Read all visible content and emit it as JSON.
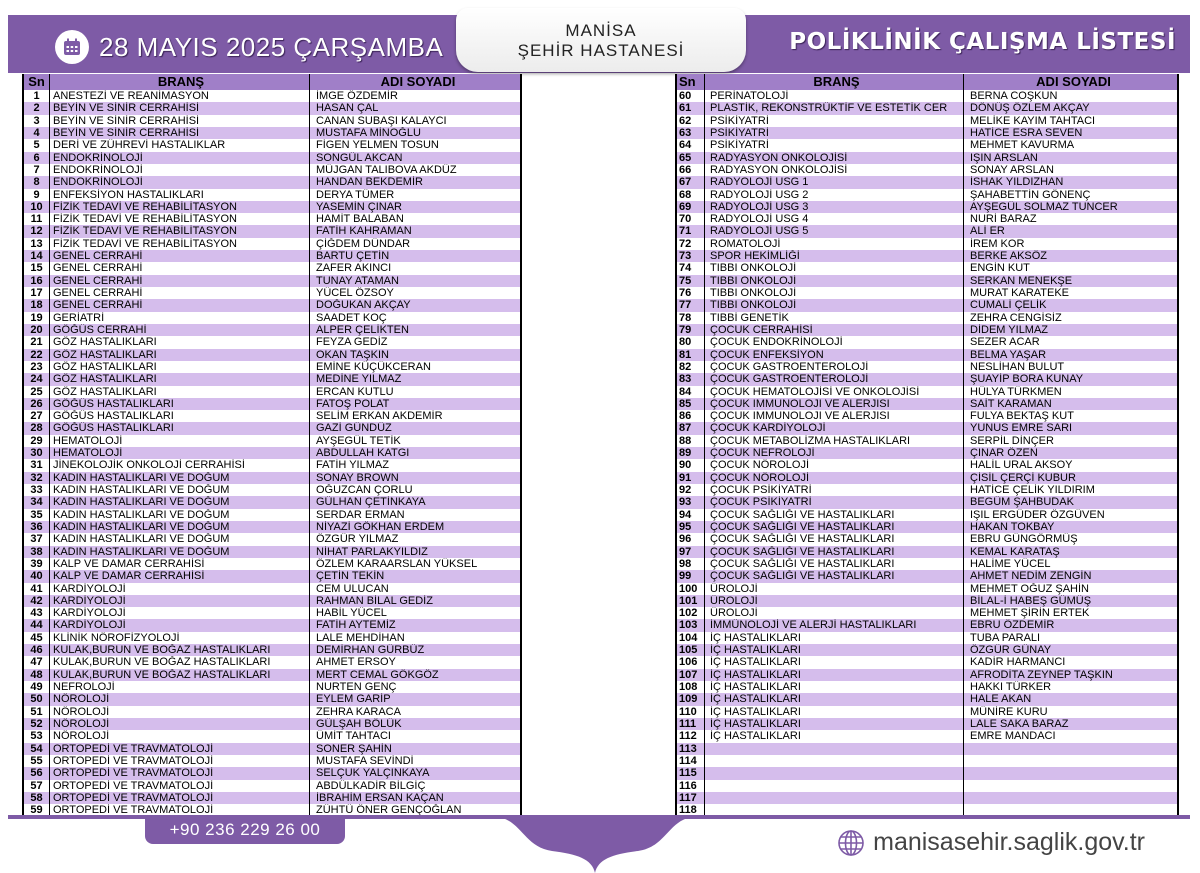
{
  "header": {
    "date": "28 MAYIS 2025 ÇARŞAMBA",
    "hospital_line1": "MANİSA",
    "hospital_line2": "ŞEHİR HASTANESİ",
    "title": "POLİKLİNİK ÇALIŞMA LİSTESİ",
    "calendar_icon": "calendar-icon"
  },
  "columns": {
    "sn": "Sn",
    "brans": "BRANŞ",
    "name": "ADI SOYADI"
  },
  "colors": {
    "accent": "#7e5ba6",
    "row_alt": "#d5bdec",
    "header_row": "#a07fc8"
  },
  "left_rows": [
    [
      "1",
      "ANESTEZİ VE REANİMASYON",
      "İMGE ÖZDEMİR"
    ],
    [
      "2",
      "BEYİN VE SİNİR CERRAHİSİ",
      "HASAN ÇAL"
    ],
    [
      "3",
      "BEYİN VE SİNİR CERRAHİSİ",
      "CANAN SUBAŞI KALAYCI"
    ],
    [
      "4",
      "BEYİN VE SİNİR CERRAHİSİ",
      "MUSTAFA MİNOĞLU"
    ],
    [
      "5",
      "DERİ VE ZÜHREVİ HASTALIKLAR",
      "FİGEN YELMEN TOSUN"
    ],
    [
      "6",
      "ENDOKRİNOLOJİ",
      "SONGÜL AKCAN"
    ],
    [
      "7",
      "ENDOKRİNOLOJİ",
      "MÜJGAN TALIBOVA AKDÜZ"
    ],
    [
      "8",
      "ENDOKRİNOLOJİ",
      "HANDAN BEKDEMİR"
    ],
    [
      "9",
      "ENFEKSİYON HASTALIKLARI",
      "DERYA TÜMER"
    ],
    [
      "10",
      "FİZİK TEDAVİ VE REHABİLİTASYON",
      "YASEMİN ÇINAR"
    ],
    [
      "11",
      "FİZİK TEDAVİ VE REHABİLİTASYON",
      "HAMİT BALABAN"
    ],
    [
      "12",
      "FİZİK TEDAVİ VE REHABİLİTASYON",
      "FATİH KAHRAMAN"
    ],
    [
      "13",
      "FİZİK TEDAVİ VE REHABİLİTASYON",
      "ÇİĞDEM DÜNDAR"
    ],
    [
      "14",
      "GENEL CERRAHİ",
      "BARTU ÇETİN"
    ],
    [
      "15",
      "GENEL CERRAHİ",
      "ZAFER AKINCI"
    ],
    [
      "16",
      "GENEL CERRAHİ",
      "TUNAY ATAMAN"
    ],
    [
      "17",
      "GENEL CERRAHİ",
      "YÜCEL ÖZSOY"
    ],
    [
      "18",
      "GENEL CERRAHİ",
      "DOĞUKAN AKÇAY"
    ],
    [
      "19",
      "GERİATRİ",
      "SAADET KOÇ"
    ],
    [
      "20",
      "GÖĞÜS CERRAHİ",
      "ALPER ÇELİKTEN"
    ],
    [
      "21",
      "GÖZ HASTALIKLARI",
      "FEYZA GEDİZ"
    ],
    [
      "22",
      "GÖZ HASTALIKLARI",
      "OKAN TAŞKIN"
    ],
    [
      "23",
      "GÖZ HASTALIKLARI",
      "EMİNE KÜÇÜKCERAN"
    ],
    [
      "24",
      "GÖZ HASTALIKLARI",
      "MEDİNE YILMAZ"
    ],
    [
      "25",
      "GÖZ HASTALIKLARI",
      "ERCAN KUTLU"
    ],
    [
      "26",
      "GÖĞÜS HASTALIKLARI",
      "FATOŞ POLAT"
    ],
    [
      "27",
      "GÖĞÜS HASTALIKLARI",
      "SELİM ERKAN AKDEMİR"
    ],
    [
      "28",
      "GÖĞÜS HASTALIKLARI",
      "GAZİ GÜNDÜZ"
    ],
    [
      "29",
      "HEMATOLOJİ",
      "AYŞEGÜL TETİK"
    ],
    [
      "30",
      "HEMATOLOJİ",
      "ABDULLAH KATGI"
    ],
    [
      "31",
      "JİNEKOLOJİK ONKOLOJİ CERRAHİSİ",
      "FATİH YILMAZ"
    ],
    [
      "32",
      "KADIN HASTALIKLARI VE DOĞUM",
      "SONAY BROWN"
    ],
    [
      "33",
      "KADIN HASTALIKLARI VE DOĞUM",
      "OĞUZCAN ÇORLU"
    ],
    [
      "34",
      "KADIN HASTALIKLARI VE DOĞUM",
      "GÜLHAN ÇETİNKAYA"
    ],
    [
      "35",
      "KADIN HASTALIKLARI VE DOĞUM",
      "SERDAR ERMAN"
    ],
    [
      "36",
      "KADIN HASTALIKLARI VE DOĞUM",
      "NİYAZİ GÖKHAN ERDEM"
    ],
    [
      "37",
      "KADIN HASTALIKLARI VE DOĞUM",
      "ÖZGÜR YILMAZ"
    ],
    [
      "38",
      "KADIN HASTALIKLARI VE DOĞUM",
      "NİHAT PARLAKYILDIZ"
    ],
    [
      "39",
      "KALP VE DAMAR CERRAHİSİ",
      "ÖZLEM KARAARSLAN YÜKSEL"
    ],
    [
      "40",
      "KALP VE DAMAR CERRAHİSİ",
      "ÇETİN TEKİN"
    ],
    [
      "41",
      "KARDİYOLOJİ",
      "CEM ULUCAN"
    ],
    [
      "42",
      "KARDİYOLOJİ",
      "RAHMAN BİLAL GEDİZ"
    ],
    [
      "43",
      "KARDİYOLOJİ",
      "HABİL YÜCEL"
    ],
    [
      "44",
      "KARDİYOLOJİ",
      "FATİH AYTEMİZ"
    ],
    [
      "45",
      "KLİNİK NÖROFİZYOLOJİ",
      "LALE MEHDİHAN"
    ],
    [
      "46",
      "KULAK,BURUN VE BOĞAZ HASTALIKLARI",
      "DEMİRHAN GÜRBÜZ"
    ],
    [
      "47",
      "KULAK,BURUN VE BOĞAZ HASTALIKLARI",
      "AHMET ERSOY"
    ],
    [
      "48",
      "KULAK,BURUN VE BOĞAZ HASTALIKLARI",
      "MERT CEMAL GÖKGÖZ"
    ],
    [
      "49",
      "NEFROLOJİ",
      "NURTEN GENÇ"
    ],
    [
      "50",
      "NÖROLOJİ",
      "EYLEM GARİP"
    ],
    [
      "51",
      "NÖROLOJİ",
      "ZEHRA KARACA"
    ],
    [
      "52",
      "NÖROLOJİ",
      "GÜLŞAH BÖLÜK"
    ],
    [
      "53",
      "NÖROLOJİ",
      "ÜMİT TAHTACI"
    ],
    [
      "54",
      "ORTOPEDİ VE TRAVMATOLOJİ",
      "SONER ŞAHİN"
    ],
    [
      "55",
      "ORTOPEDİ VE TRAVMATOLOJİ",
      "MUSTAFA SEVİNDİ"
    ],
    [
      "56",
      "ORTOPEDİ VE TRAVMATOLOJİ",
      "SELÇUK YALÇINKAYA"
    ],
    [
      "57",
      "ORTOPEDİ VE TRAVMATOLOJİ",
      "ABDÜLKADİR BİLGİÇ"
    ],
    [
      "58",
      "ORTOPEDİ VE TRAVMATOLOJİ",
      "İBRAHİM ERSAN KAÇAN"
    ],
    [
      "59",
      "ORTOPEDİ VE TRAVMATOLOJİ",
      "ZÜHTÜ ÖNER GENÇOĞLAN"
    ]
  ],
  "right_rows": [
    [
      "60",
      "PERİNATOLOJİ",
      "BERNA COŞKUN"
    ],
    [
      "61",
      "PLASTİK, REKONSTRÜKTİF VE ESTETİK CER",
      "DÖNÜŞ ÖZLEM AKÇAY"
    ],
    [
      "62",
      "PSİKİYATRİ",
      "MELİKE KAYIM TAHTACI"
    ],
    [
      "63",
      "PSİKİYATRİ",
      "HATİCE ESRA SEVEN"
    ],
    [
      "64",
      "PSİKİYATRİ",
      "MEHMET KAVURMA"
    ],
    [
      "65",
      "RADYASYON ONKOLOJİSİ",
      "IŞIN ARSLAN"
    ],
    [
      "66",
      "RADYASYON ONKOLOJİSİ",
      "SONAY ARSLAN"
    ],
    [
      "67",
      "RADYOLOJİ USG 1",
      "İSHAK YILDIZHAN"
    ],
    [
      "68",
      "RADYOLOJİ USG 2",
      "ŞAHABETTİN  GÖNENÇ"
    ],
    [
      "69",
      "RADYOLOJİ USG 3",
      "AYŞEGÜL SOLMAZ TUNCER"
    ],
    [
      "70",
      "RADYOLOJİ USG 4",
      "NURİ BARAZ"
    ],
    [
      "71",
      "RADYOLOJİ USG 5",
      "ALİ ER"
    ],
    [
      "72",
      "ROMATOLOJİ",
      "İREM KOR"
    ],
    [
      "73",
      "SPOR HEKİMLİĞİ",
      "BERKE AKSÖZ"
    ],
    [
      "74",
      "TIBBI ONKOLOJİ",
      "ENGİN KUT"
    ],
    [
      "75",
      "TIBBI ONKOLOJİ",
      "SERKAN MENEKŞE"
    ],
    [
      "76",
      "TIBBI ONKOLOJİ",
      "MURAT KARATEKE"
    ],
    [
      "77",
      "TIBBI ONKOLOJİ",
      "CUMALİ ÇELİK"
    ],
    [
      "78",
      "TIBBİ GENETİK",
      "ZEHRA CENGİSİZ"
    ],
    [
      "79",
      "ÇOCUK CERRAHİSİ",
      "DİDEM YILMAZ"
    ],
    [
      "80",
      "ÇOCUK ENDOKRİNOLOJİ",
      "SEZER ACAR"
    ],
    [
      "81",
      "ÇOCUK ENFEKSİYON",
      "BELMA YAŞAR"
    ],
    [
      "82",
      "ÇOCUK GASTROENTEROLOJİ",
      "NESLİHAN BULUT"
    ],
    [
      "83",
      "ÇOCUK GASTROENTEROLOJİ",
      "ŞUAYİP BORA KUNAY"
    ],
    [
      "84",
      "ÇOCUK HEMATOLOJİSİ VE ONKOLOJİSİ",
      "HÜLYA TÜRKMEN"
    ],
    [
      "85",
      "ÇOCUK IMMUNOLOJI VE ALERJISI",
      "SAİT KARAMAN"
    ],
    [
      "86",
      "ÇOCUK IMMUNOLOJI VE ALERJISI",
      "FULYA BEKTAŞ KUT"
    ],
    [
      "87",
      "ÇOCUK KARDİYOLOJİ",
      "YUNUS EMRE SARI"
    ],
    [
      "88",
      "ÇOCUK METABOLİZMA HASTALIKLARI",
      "SERPİL DİNÇER"
    ],
    [
      "89",
      "ÇOCUK NEFROLOJİ",
      "ÇINAR ÖZEN"
    ],
    [
      "90",
      "ÇOCUK NÖROLOJİ",
      "HALİL URAL AKSOY"
    ],
    [
      "91",
      "ÇOCUK NÖROLOJİ",
      "ÇİSİL ÇERÇİ KUBUR"
    ],
    [
      "92",
      "ÇOCUK PSİKİYATRİ",
      "HATİCE ÇELİK YILDIRIM"
    ],
    [
      "93",
      "ÇOCUK PSİKİYATRİ",
      "BEGÜM ŞAHBUDAK"
    ],
    [
      "94",
      "ÇOCUK SAĞLIĞI VE HASTALIKLARI",
      "IŞIL ERGÜDER ÖZGÜVEN"
    ],
    [
      "95",
      "ÇOCUK SAĞLIĞI VE HASTALIKLARI",
      "HAKAN TOKBAY"
    ],
    [
      "96",
      "ÇOCUK SAĞLIĞI VE HASTALIKLARI",
      "EBRU GÜNGÖRMÜŞ"
    ],
    [
      "97",
      "ÇOCUK SAĞLIĞI VE HASTALIKLARI",
      "KEMAL KARATAŞ"
    ],
    [
      "98",
      "ÇOCUK SAĞLIĞI VE HASTALIKLARI",
      "HALİME YÜCEL"
    ],
    [
      "99",
      "ÇOCUK SAĞLIĞI VE HASTALIKLARI",
      "AHMET NEDİM ZENGİN"
    ],
    [
      "100",
      "ÜROLOJİ",
      "MEHMET OĞUZ ŞAHİN"
    ],
    [
      "101",
      "ÜROLOJİ",
      "BİLAL-İ HABEŞ GÜMÜŞ"
    ],
    [
      "102",
      "ÜROLOJİ",
      "MEHMET ŞİRİN ERTEK"
    ],
    [
      "103",
      "İMMÜNOLOJİ VE ALERJİ HASTALIKLARI",
      "EBRU ÖZDEMİR"
    ],
    [
      "104",
      "İÇ HASTALIKLARI",
      "TUBA PARALI"
    ],
    [
      "105",
      "İÇ HASTALIKLARI",
      "ÖZGÜR GÜNAY"
    ],
    [
      "106",
      "İÇ HASTALIKLARI",
      "KADİR HARMANCI"
    ],
    [
      "107",
      "İÇ HASTALIKLARI",
      "AFRODİTA ZEYNEP TAŞKIN"
    ],
    [
      "108",
      "İÇ HASTALIKLARI",
      "HAKKI TÜRKER"
    ],
    [
      "109",
      "İÇ HASTALIKLARI",
      "HALE AKAN"
    ],
    [
      "110",
      "İÇ HASTALIKLARI",
      "MÜNİRE KURU"
    ],
    [
      "111",
      "İÇ HASTALIKLARI",
      "LALE SAKA BARAZ"
    ],
    [
      "112",
      "İÇ HASTALIKLARI",
      "EMRE MANDACI"
    ],
    [
      "113",
      "",
      ""
    ],
    [
      "114",
      "",
      ""
    ],
    [
      "115",
      "",
      ""
    ],
    [
      "116",
      "",
      ""
    ],
    [
      "117",
      "",
      ""
    ],
    [
      "118",
      "",
      ""
    ]
  ],
  "footer": {
    "phone": "+90 236 229 26 00",
    "website": "manisasehir.saglik.gov.tr",
    "website_icon": "globe-icon"
  }
}
